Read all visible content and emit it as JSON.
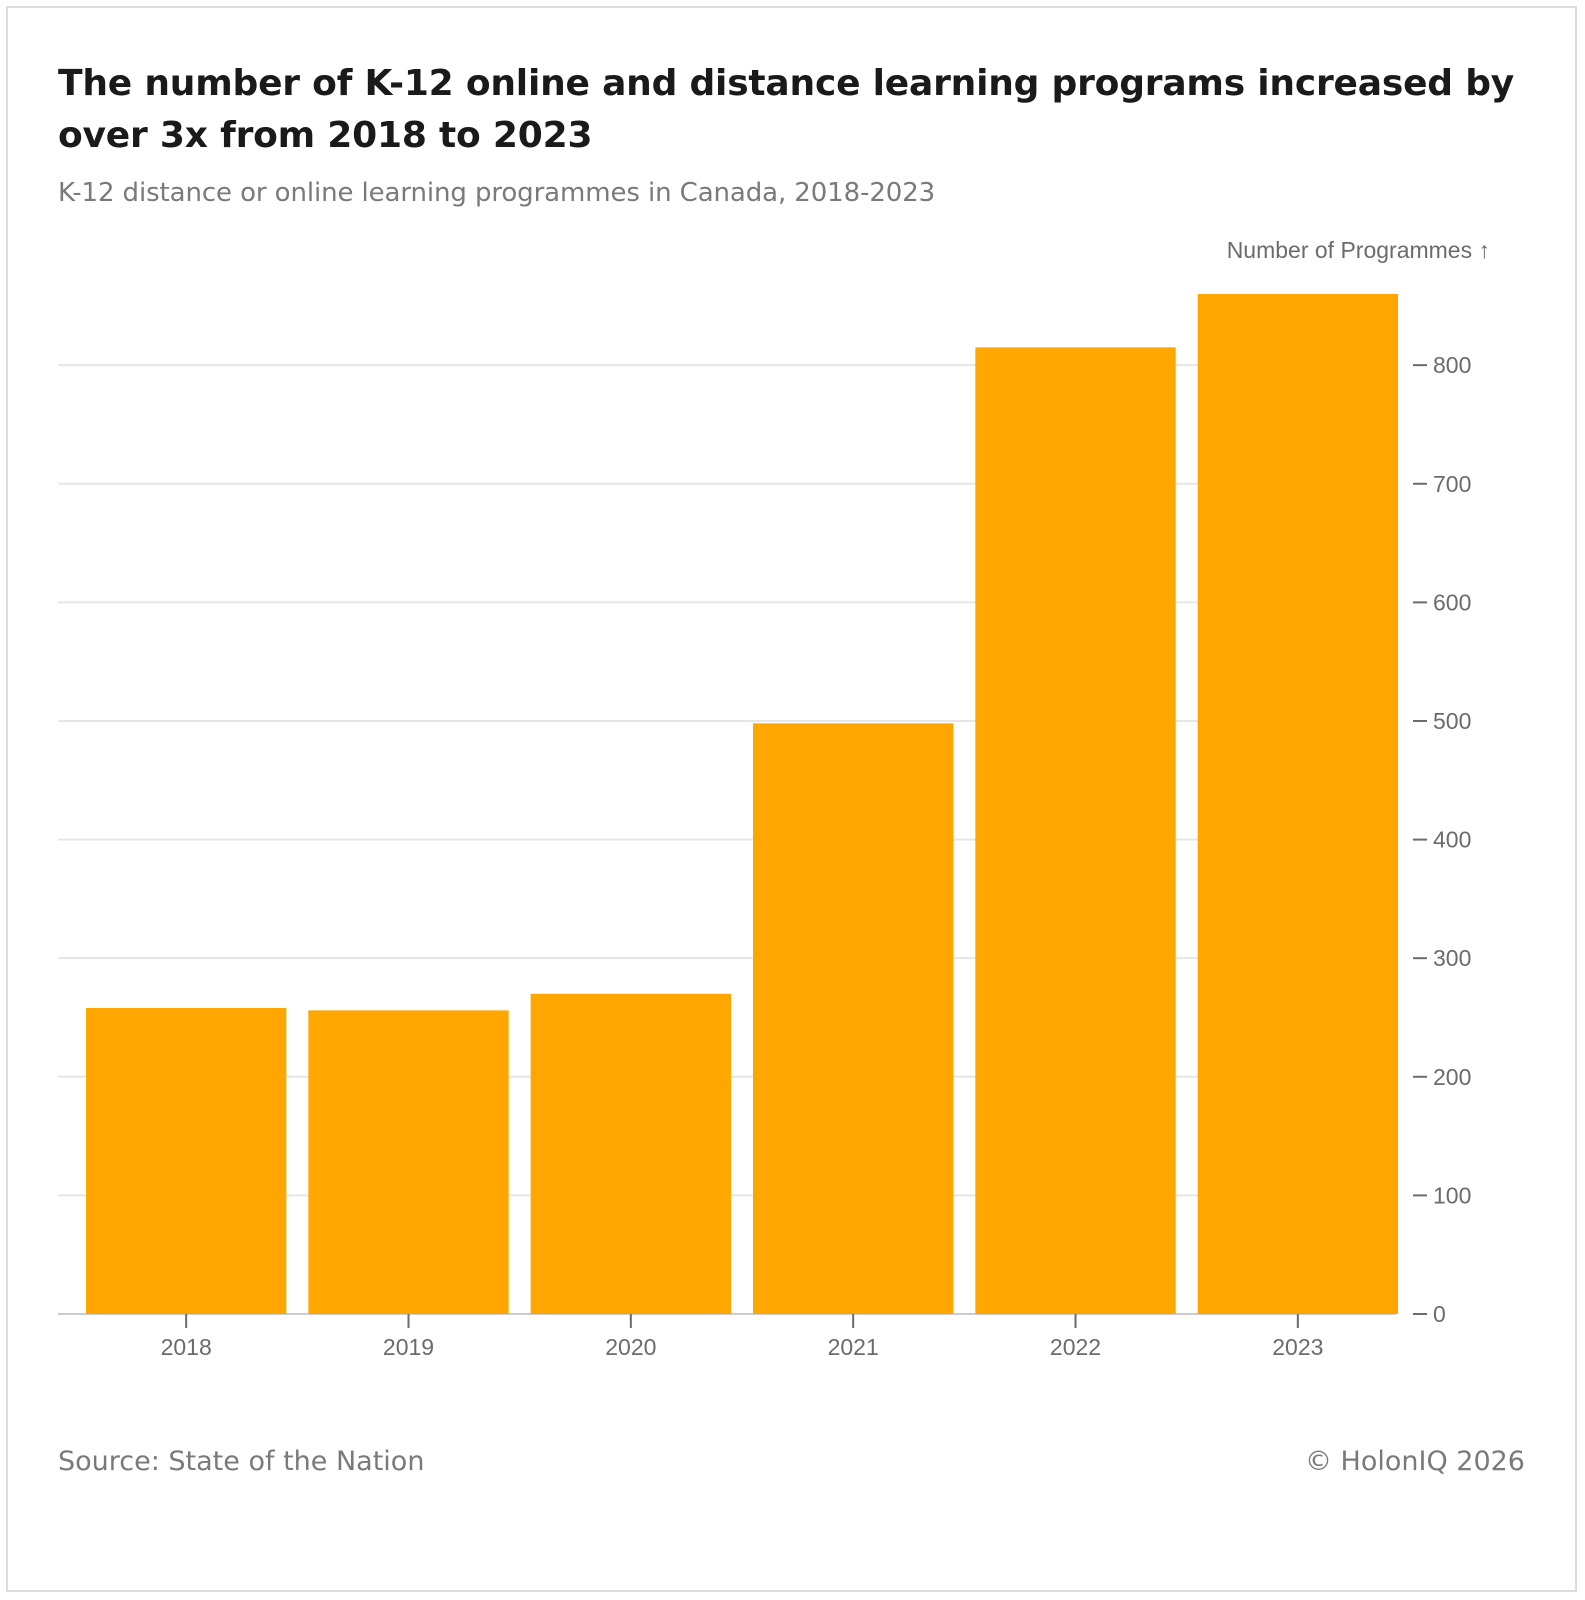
{
  "title": "The number of K-12 online and distance learning programs increased by over 3x from 2018 to 2023",
  "subtitle": "K-12 distance or online learning programmes in Canada, 2018-2023",
  "source": "Source: State of the Nation",
  "credit": "© HolonIQ 2026",
  "colors": {
    "bar": "#ffa600",
    "grid": "#e6e6e6",
    "text": "#6b6b6b",
    "title": "#1a1a1a"
  },
  "chart_data": {
    "type": "bar",
    "categories": [
      "2018",
      "2019",
      "2020",
      "2021",
      "2022",
      "2023"
    ],
    "values": [
      258,
      256,
      270,
      498,
      815,
      860
    ],
    "title": "",
    "xlabel": "",
    "ylabel": "Number of Programmes ↑",
    "ylim": [
      0,
      860
    ],
    "yticks": [
      0,
      100,
      200,
      300,
      400,
      500,
      600,
      700,
      800
    ],
    "y_axis_position": "right",
    "grid": true,
    "legend": "none"
  }
}
